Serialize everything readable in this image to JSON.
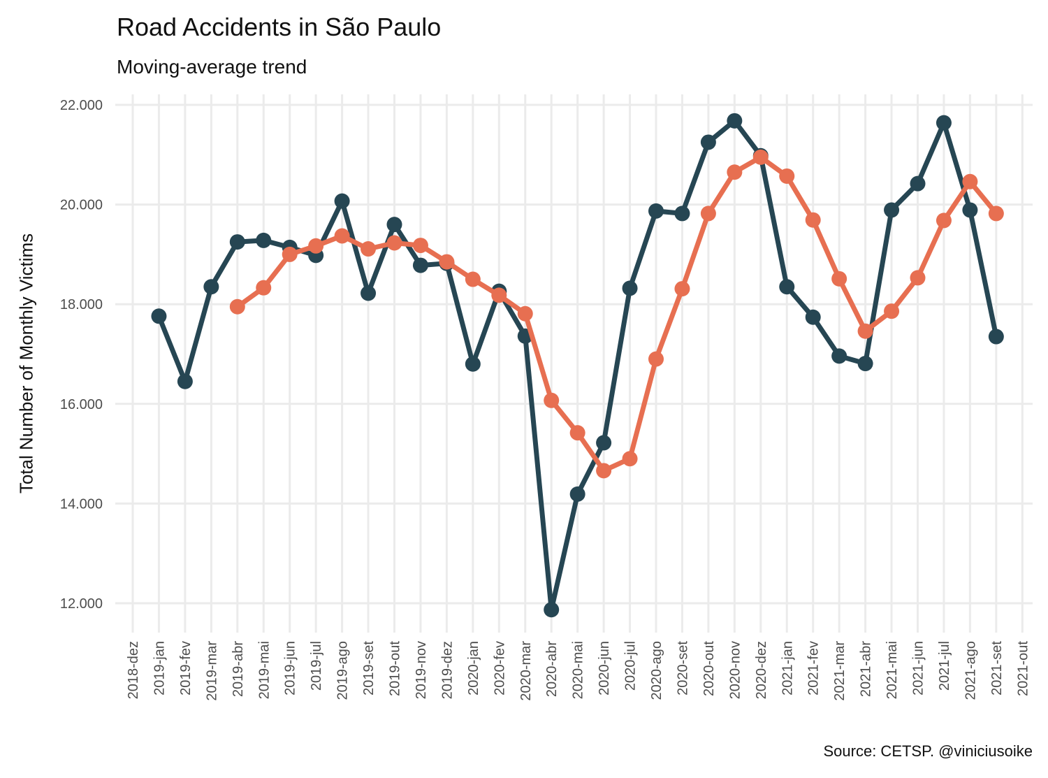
{
  "chart_data": {
    "type": "line",
    "title": "Road Accidents in São Paulo",
    "subtitle": "Moving-average trend",
    "ylabel": "Total Number of Monthly Victims",
    "xlabel": "",
    "caption": "Source: CETSP. @viniciusoike",
    "ylim": [
      11500,
      22300
    ],
    "yticks": [
      12000,
      14000,
      16000,
      18000,
      20000,
      22000
    ],
    "ytick_labels": [
      "12.000",
      "14.000",
      "16.000",
      "18.000",
      "20.000",
      "22.000"
    ],
    "grid": true,
    "legend": "none",
    "x": [
      "2018-dez",
      "2019-jan",
      "2019-fev",
      "2019-mar",
      "2019-abr",
      "2019-mai",
      "2019-jun",
      "2019-jul",
      "2019-ago",
      "2019-set",
      "2019-out",
      "2019-nov",
      "2019-dez",
      "2020-jan",
      "2020-fev",
      "2020-mar",
      "2020-abr",
      "2020-mai",
      "2020-jun",
      "2020-jul",
      "2020-ago",
      "2020-set",
      "2020-out",
      "2020-nov",
      "2020-dez",
      "2021-jan",
      "2021-fev",
      "2021-mar",
      "2021-abr",
      "2021-mai",
      "2021-jun",
      "2021-jul",
      "2021-ago",
      "2021-set",
      "2021-out"
    ],
    "series": [
      {
        "color": "#264653",
        "values": [
          null,
          17760,
          16450,
          18350,
          19250,
          19280,
          19140,
          18980,
          20070,
          18220,
          19600,
          18780,
          18820,
          16800,
          18260,
          17360,
          11870,
          14190,
          15220,
          18320,
          19870,
          19820,
          21250,
          21680,
          20980,
          18350,
          17740,
          16960,
          16810,
          19890,
          20420,
          21640,
          19890,
          17350,
          null
        ]
      },
      {
        "color": "#E76F51",
        "values": [
          null,
          null,
          null,
          null,
          17950,
          18330,
          19000,
          19170,
          19370,
          19110,
          19230,
          19180,
          18850,
          18500,
          18180,
          17810,
          16070,
          15420,
          14660,
          14900,
          16900,
          18310,
          19820,
          20650,
          20950,
          20570,
          19690,
          18510,
          17460,
          17860,
          18530,
          19680,
          20460,
          19820,
          null
        ]
      }
    ]
  }
}
